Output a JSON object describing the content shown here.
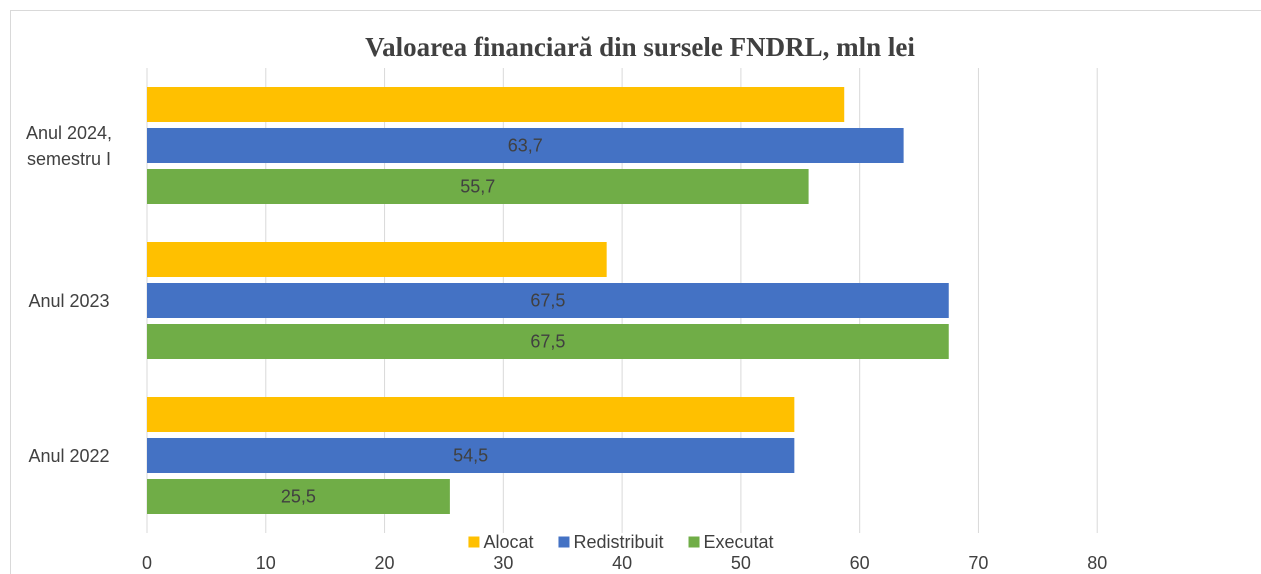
{
  "chart_data": {
    "type": "bar",
    "orientation": "horizontal",
    "title": "Valoarea financiară din sursele FNDRL, mln lei",
    "categories": [
      "Anul 2022",
      "Anul 2023",
      "Anul 2024, semestru I"
    ],
    "series": [
      {
        "name": "Alocat",
        "color": "#ffc000",
        "values": [
          54.5,
          38.7,
          58.7
        ]
      },
      {
        "name": "Redistribuit",
        "color": "#4472c4",
        "values": [
          54.5,
          67.5,
          63.7
        ],
        "value_labels": [
          "54,5",
          "67,5",
          "63,7"
        ]
      },
      {
        "name": "Executat",
        "color": "#70ad47",
        "values": [
          25.5,
          67.5,
          55.7
        ],
        "value_labels": [
          "25,5",
          "67,5",
          "55,7"
        ]
      }
    ],
    "xlim": [
      0,
      90
    ],
    "xticks": [
      0,
      10,
      20,
      30,
      40,
      50,
      60,
      70,
      80
    ],
    "grid": true,
    "legend": "bottom"
  }
}
